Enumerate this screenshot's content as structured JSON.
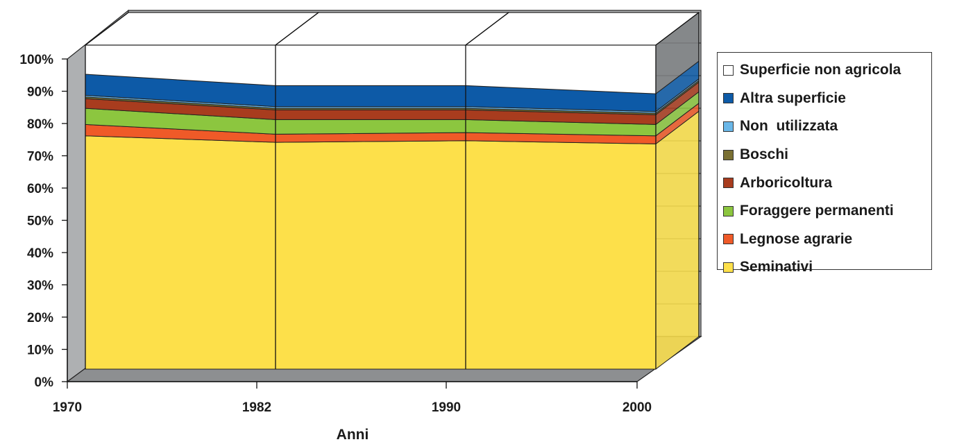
{
  "chart_data": {
    "type": "area",
    "stacked_percent": true,
    "three_d": true,
    "x": [
      "1970",
      "1982",
      "1990",
      "2000"
    ],
    "xlabel": "Anni",
    "ylabel": "",
    "ylim": [
      0,
      100
    ],
    "yticks": [
      "0%",
      "10%",
      "20%",
      "30%",
      "40%",
      "50%",
      "60%",
      "70%",
      "80%",
      "90%",
      "100%"
    ],
    "legend_position": "right",
    "series": [
      {
        "name": "Seminativi",
        "values": [
          72,
          70,
          70.5,
          69.5
        ],
        "color": "#fde04a"
      },
      {
        "name": "Legnose agrarie",
        "values": [
          3.5,
          2.5,
          2.5,
          2.5
        ],
        "color": "#ef5a28"
      },
      {
        "name": "Foraggere permanenti",
        "values": [
          5,
          4.5,
          4,
          3.5
        ],
        "color": "#8cc63f"
      },
      {
        "name": "Arboricoltura",
        "values": [
          3,
          3,
          3,
          3
        ],
        "color": "#a83c1e"
      },
      {
        "name": "Boschi",
        "values": [
          0.5,
          0.5,
          0.5,
          0.5
        ],
        "color": "#7a7033"
      },
      {
        "name": "Non  utilizzata",
        "values": [
          0.5,
          0.5,
          0.5,
          0.5
        ],
        "color": "#6ab7e8"
      },
      {
        "name": "Altra superficie",
        "values": [
          6.5,
          6.5,
          6.5,
          5.5
        ],
        "color": "#0d5aa7"
      },
      {
        "name": "Superficie non agricola",
        "values": [
          9,
          12.5,
          12.5,
          15
        ],
        "color": "#ffffff"
      }
    ]
  }
}
